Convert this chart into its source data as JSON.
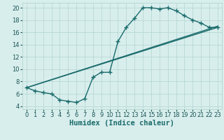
{
  "bg_color": "#d8eeed",
  "grid_color": "#b8d8d4",
  "line_color": "#1a6b6b",
  "line_width": 1.0,
  "marker": "+",
  "markersize": 4,
  "xlabel": "Humidex (Indice chaleur)",
  "xlabel_fontsize": 7.5,
  "xlim": [
    -0.5,
    23.5
  ],
  "ylim": [
    3.5,
    20.8
  ],
  "xticks": [
    0,
    1,
    2,
    3,
    4,
    5,
    6,
    7,
    8,
    9,
    10,
    11,
    12,
    13,
    14,
    15,
    16,
    17,
    18,
    19,
    20,
    21,
    22,
    23
  ],
  "yticks": [
    4,
    6,
    8,
    10,
    12,
    14,
    16,
    18,
    20
  ],
  "tick_fontsize": 6.0,
  "line1_x": [
    0,
    1,
    2,
    3,
    4,
    5,
    6,
    7,
    8,
    9,
    10,
    11,
    12,
    13,
    14,
    15,
    16,
    17,
    18,
    19,
    20,
    21,
    22,
    23
  ],
  "line1_y": [
    7.0,
    6.5,
    6.2,
    6.0,
    5.0,
    4.8,
    4.6,
    5.2,
    8.7,
    9.5,
    9.5,
    14.5,
    16.8,
    18.3,
    20.0,
    20.0,
    19.8,
    20.0,
    19.5,
    18.7,
    18.0,
    17.5,
    16.8,
    16.8
  ],
  "line2_x": [
    0,
    23
  ],
  "line2_y": [
    7.0,
    17.0
  ],
  "line3_x": [
    0,
    23
  ],
  "line3_y": [
    7.0,
    16.8
  ]
}
